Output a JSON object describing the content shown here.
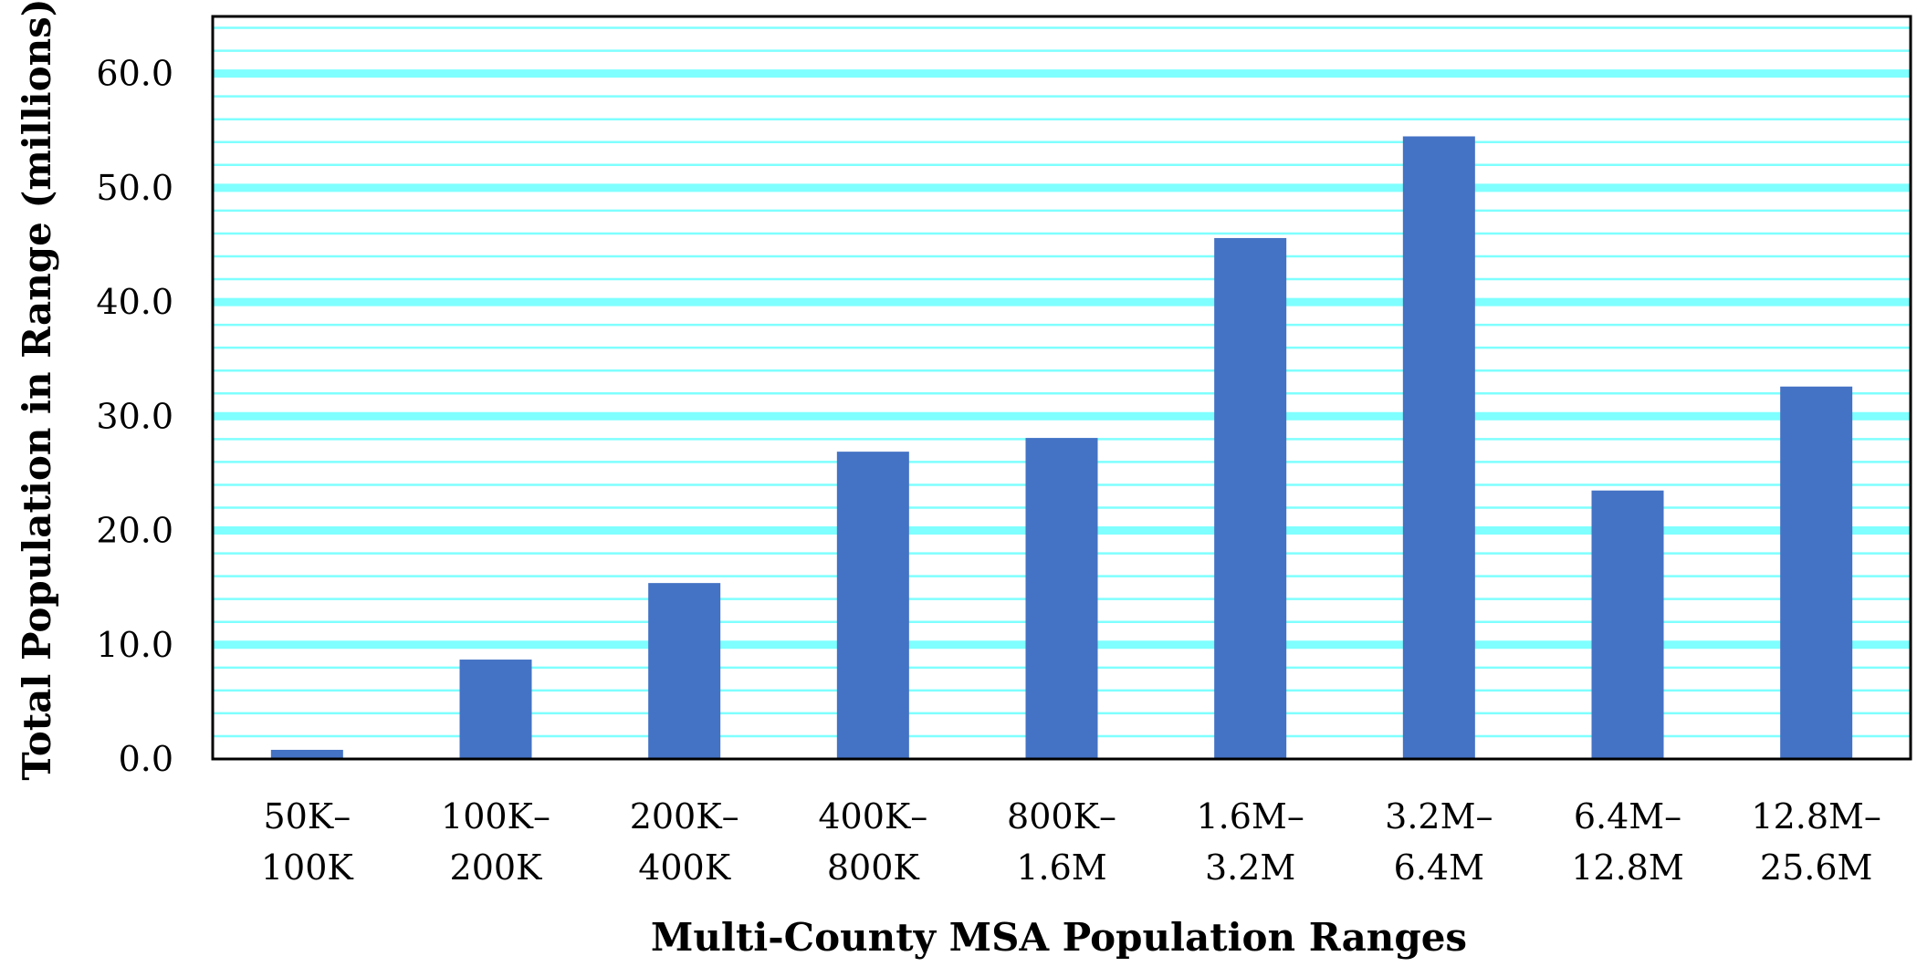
{
  "chart_data": {
    "type": "bar",
    "title": "",
    "xlabel": "Multi-County MSA Population Ranges",
    "ylabel": "Total Population in Range (millions)",
    "ylim": [
      0,
      65
    ],
    "major_ticks": [
      0,
      10,
      20,
      30,
      40,
      50,
      60
    ],
    "major_tick_labels": [
      "0.0",
      "10.0",
      "20.0",
      "30.0",
      "40.0",
      "50.0",
      "60.0"
    ],
    "minor_gridline_step": 2,
    "grid": true,
    "categories": [
      [
        "50K–",
        "100K"
      ],
      [
        "100K–",
        "200K"
      ],
      [
        "200K–",
        "400K"
      ],
      [
        "400K–",
        "800K"
      ],
      [
        "800K–",
        "1.6M"
      ],
      [
        "1.6M–",
        "3.2M"
      ],
      [
        "3.2M–",
        "6.4M"
      ],
      [
        "6.4M–",
        "12.8M"
      ],
      [
        "12.8M–",
        "25.6M"
      ]
    ],
    "values": [
      0.8,
      8.7,
      15.4,
      26.9,
      28.1,
      45.6,
      54.5,
      23.5,
      32.6
    ],
    "colors": {
      "bar": "#4472C4",
      "grid_major": "#7FFFFF",
      "grid_minor": "#7FFFFF",
      "frame": "#000000"
    }
  }
}
